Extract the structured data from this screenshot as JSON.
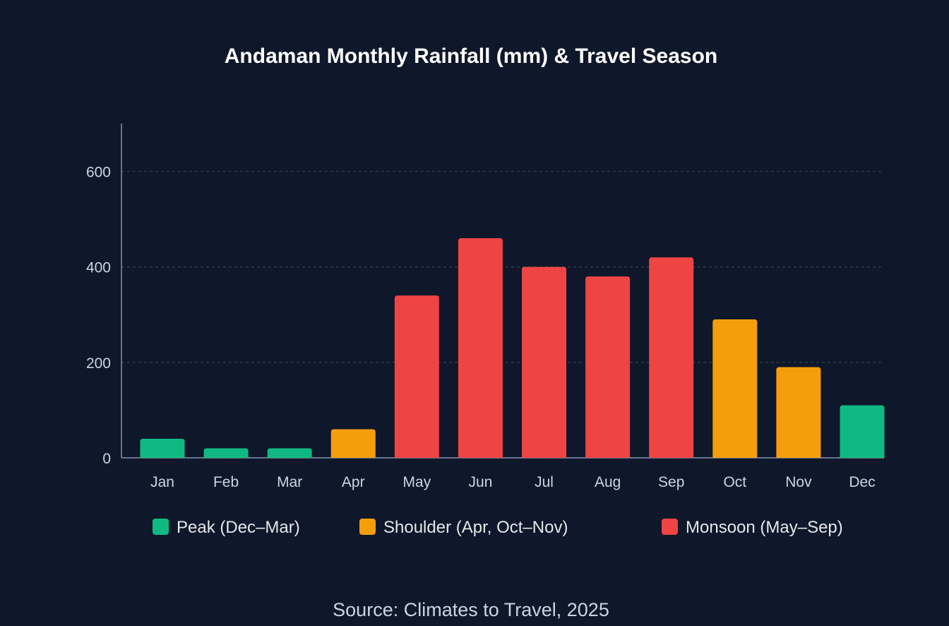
{
  "chart_data": {
    "type": "bar",
    "title": "Andaman Monthly Rainfall (mm) & Travel Season",
    "xlabel": "",
    "ylabel": "",
    "ylim": [
      0,
      700
    ],
    "yticks": [
      0,
      200,
      400,
      600
    ],
    "grid": true,
    "categories": [
      "Jan",
      "Feb",
      "Mar",
      "Apr",
      "May",
      "Jun",
      "Jul",
      "Aug",
      "Sep",
      "Oct",
      "Nov",
      "Dec"
    ],
    "values": [
      40,
      20,
      20,
      60,
      340,
      460,
      400,
      380,
      420,
      290,
      190,
      110
    ],
    "season": [
      "peak",
      "peak",
      "peak",
      "shoulder",
      "monsoon",
      "monsoon",
      "monsoon",
      "monsoon",
      "monsoon",
      "shoulder",
      "shoulder",
      "peak"
    ],
    "legend_placement": "bottom",
    "legend": [
      {
        "key": "peak",
        "label": "Peak (Dec–Mar)",
        "color": "#10b981"
      },
      {
        "key": "shoulder",
        "label": "Shoulder (Apr, Oct–Nov)",
        "color": "#f59e0b"
      },
      {
        "key": "monsoon",
        "label": "Monsoon (May–Sep)",
        "color": "#ef4444"
      }
    ]
  },
  "source": "Source: Climates to Travel, 2025",
  "colors": {
    "background": "#0f172a",
    "axis": "#64748b",
    "grid": "#334155",
    "peak": "#10b981",
    "shoulder": "#f59e0b",
    "monsoon": "#ef4444"
  }
}
